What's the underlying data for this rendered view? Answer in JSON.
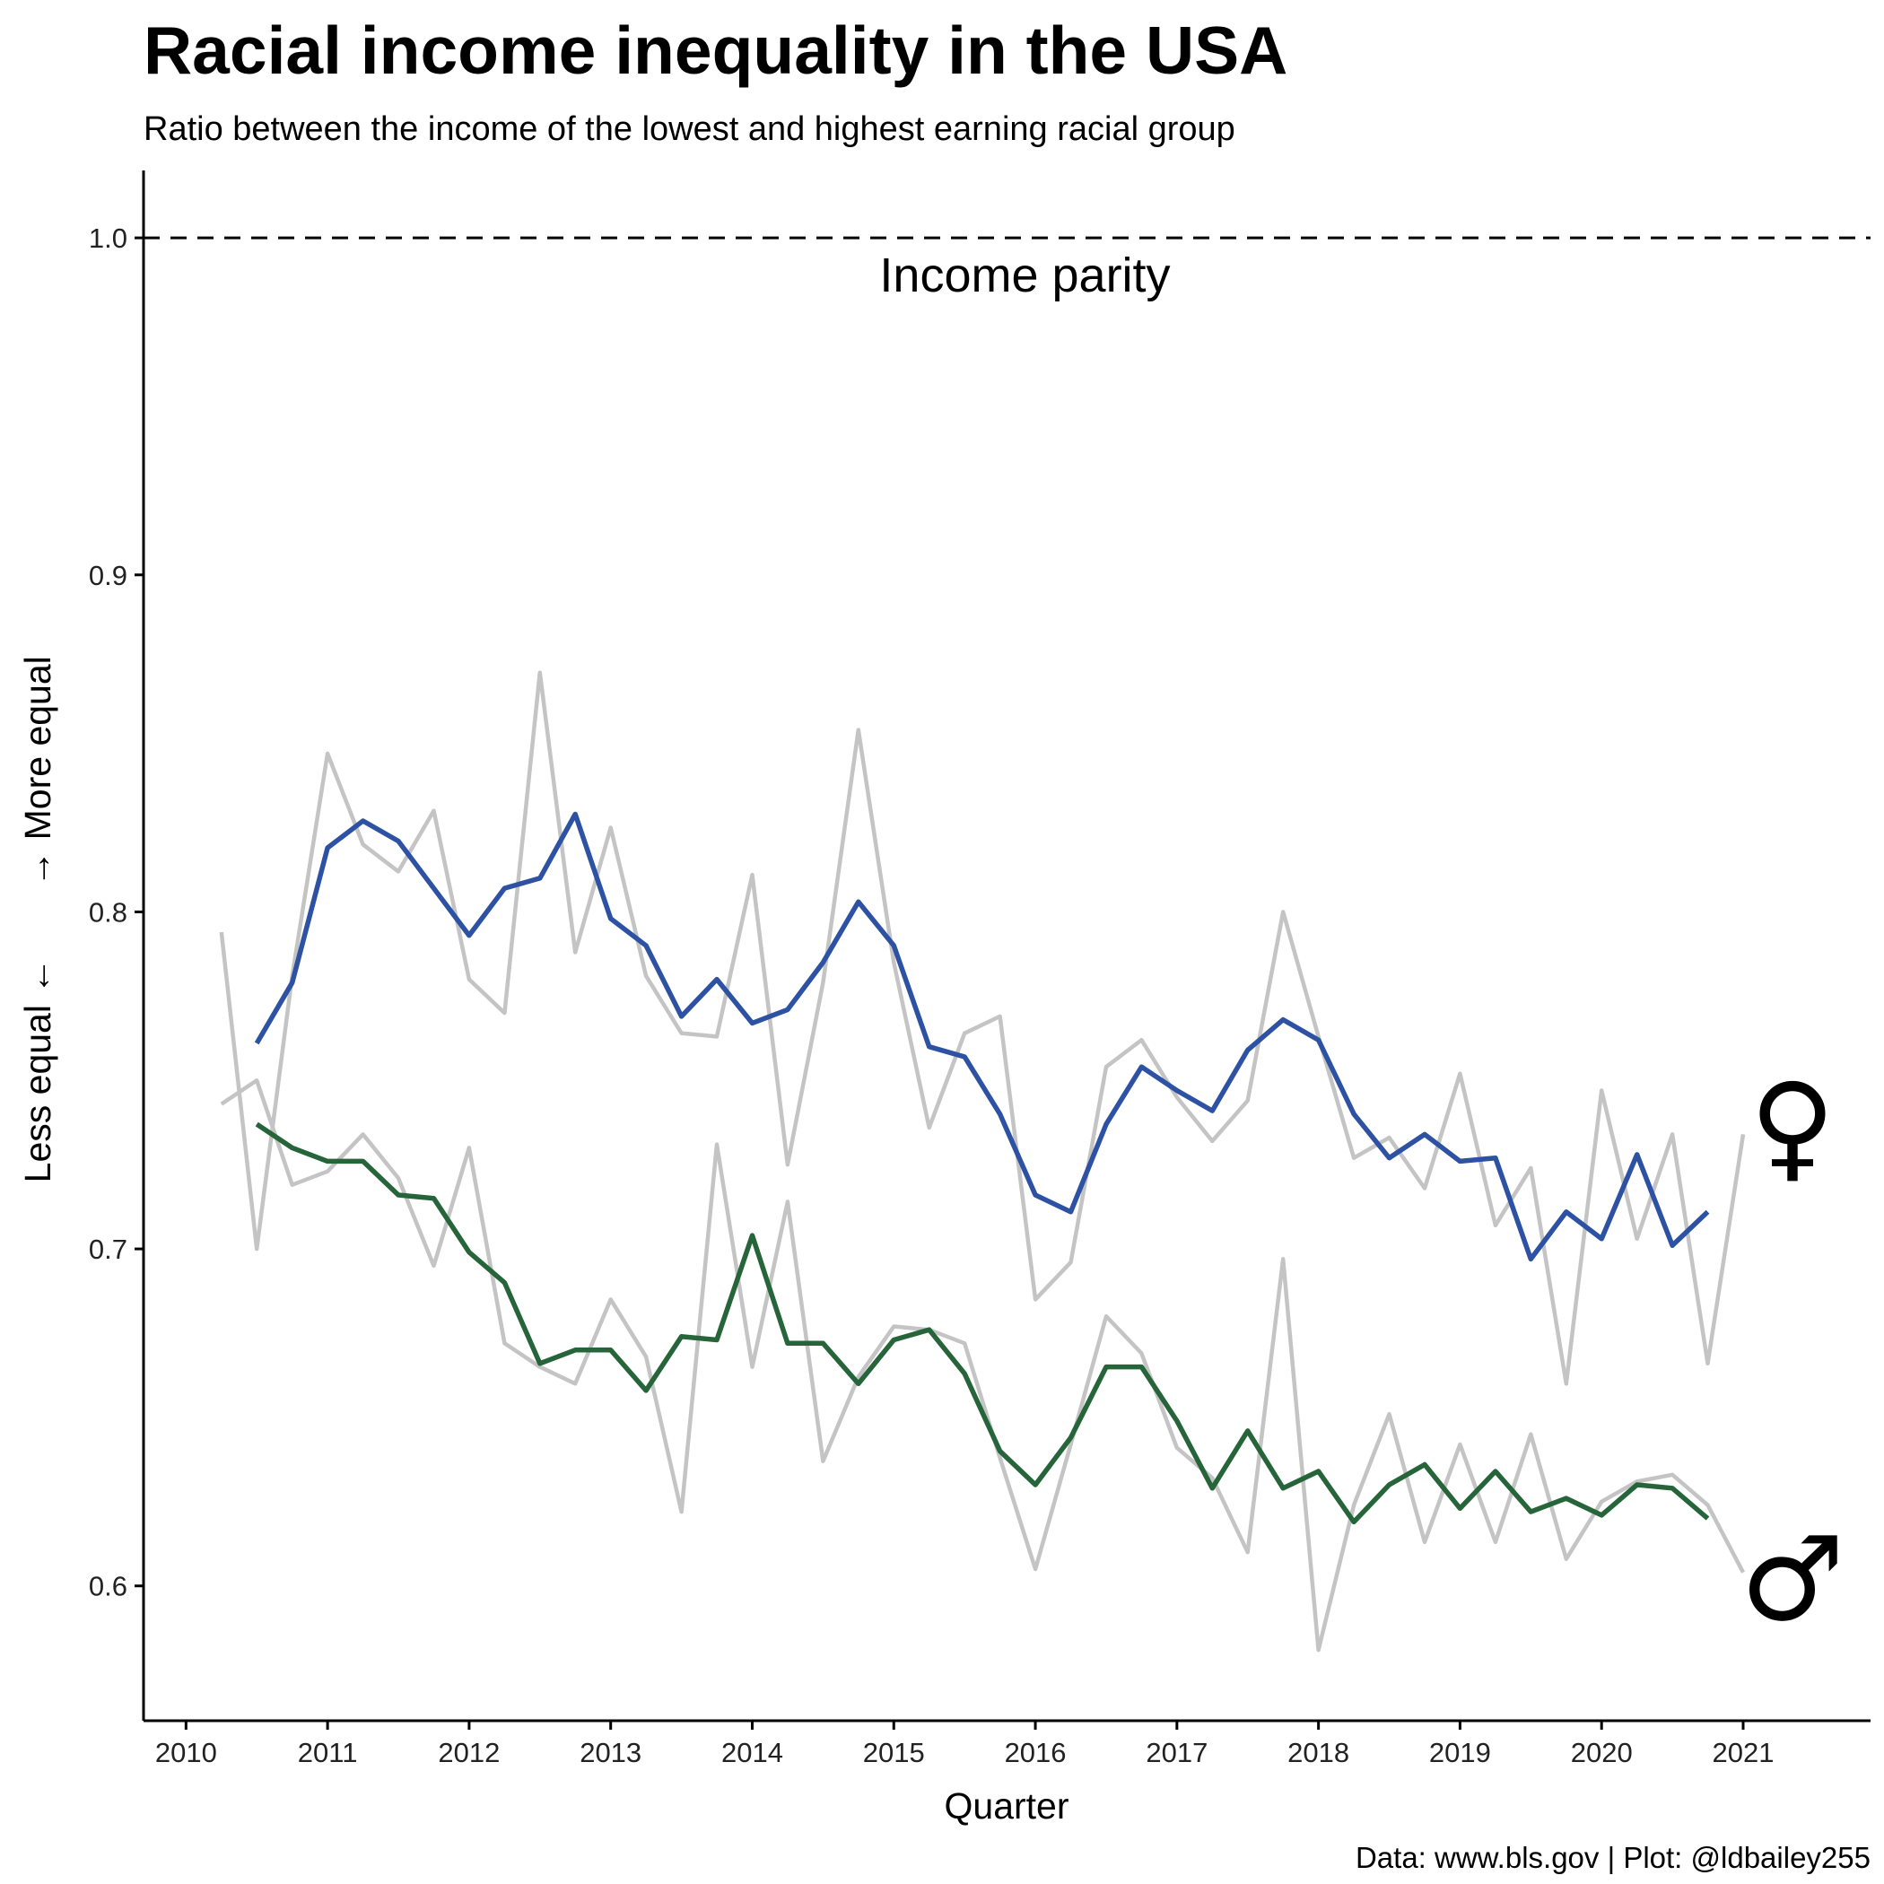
{
  "chart_data": {
    "type": "line",
    "title": "Racial income inequality in the USA",
    "subtitle": "Ratio between the income of the lowest and highest earning racial group",
    "xlabel": "Quarter",
    "ylabel_lower": "Less equal ←",
    "ylabel_upper": "→ More equal",
    "caption": "Data: www.bls.gov | Plot: @ldbailey255",
    "annotation": "Income parity",
    "reference_line": 1.0,
    "female_symbol": "♀",
    "male_symbol": "♂",
    "xlim": [
      2009.7,
      2021.9
    ],
    "ylim": [
      0.56,
      1.02
    ],
    "x_ticks": [
      2010,
      2011,
      2012,
      2013,
      2014,
      2015,
      2016,
      2017,
      2018,
      2019,
      2020,
      2021
    ],
    "y_ticks": [
      0.6,
      0.7,
      0.8,
      0.9,
      1.0
    ],
    "y_tick_labels": [
      "0.6",
      "0.7",
      "0.8",
      "0.9",
      "1.0"
    ],
    "grid": false,
    "series": [
      {
        "key": "female_raw",
        "role": "raw",
        "color": "#c4c4c4",
        "x": [
          2010.25,
          2010.5,
          2010.75,
          2011.0,
          2011.25,
          2011.5,
          2011.75,
          2012.0,
          2012.25,
          2012.5,
          2012.75,
          2013.0,
          2013.25,
          2013.5,
          2013.75,
          2014.0,
          2014.25,
          2014.5,
          2014.75,
          2015.0,
          2015.25,
          2015.5,
          2015.75,
          2016.0,
          2016.25,
          2016.5,
          2016.75,
          2017.0,
          2017.25,
          2017.5,
          2017.75,
          2018.0,
          2018.25,
          2018.5,
          2018.75,
          2019.0,
          2019.25,
          2019.5,
          2019.75,
          2020.0,
          2020.25,
          2020.5,
          2020.75,
          2021.0
        ],
        "y": [
          0.794,
          0.7,
          0.781,
          0.847,
          0.82,
          0.812,
          0.83,
          0.78,
          0.77,
          0.871,
          0.788,
          0.825,
          0.781,
          0.764,
          0.763,
          0.811,
          0.725,
          0.779,
          0.854,
          0.785,
          0.736,
          0.764,
          0.769,
          0.685,
          0.696,
          0.754,
          0.762,
          0.745,
          0.732,
          0.744,
          0.8,
          0.763,
          0.727,
          0.733,
          0.718,
          0.752,
          0.707,
          0.724,
          0.66,
          0.747,
          0.703,
          0.734,
          0.666,
          0.734
        ]
      },
      {
        "key": "male_raw",
        "role": "raw",
        "color": "#c4c4c4",
        "x": [
          2010.25,
          2010.5,
          2010.75,
          2011.0,
          2011.25,
          2011.5,
          2011.75,
          2012.0,
          2012.25,
          2012.5,
          2012.75,
          2013.0,
          2013.25,
          2013.5,
          2013.75,
          2014.0,
          2014.25,
          2014.5,
          2014.75,
          2015.0,
          2015.25,
          2015.5,
          2015.75,
          2016.0,
          2016.25,
          2016.5,
          2016.75,
          2017.0,
          2017.25,
          2017.5,
          2017.75,
          2018.0,
          2018.25,
          2018.5,
          2018.75,
          2019.0,
          2019.25,
          2019.5,
          2019.75,
          2020.0,
          2020.25,
          2020.5,
          2020.75,
          2021.0
        ],
        "y": [
          0.743,
          0.75,
          0.719,
          0.723,
          0.734,
          0.721,
          0.695,
          0.73,
          0.672,
          0.665,
          0.66,
          0.685,
          0.668,
          0.622,
          0.731,
          0.665,
          0.714,
          0.637,
          0.662,
          0.677,
          0.676,
          0.672,
          0.638,
          0.605,
          0.642,
          0.68,
          0.669,
          0.641,
          0.632,
          0.61,
          0.697,
          0.581,
          0.624,
          0.651,
          0.613,
          0.642,
          0.613,
          0.645,
          0.608,
          0.625,
          0.631,
          0.633,
          0.624,
          0.604
        ]
      },
      {
        "key": "female_smooth",
        "role": "trend",
        "color": "#2e52a3",
        "x": [
          2010.5,
          2010.75,
          2011.0,
          2011.25,
          2011.5,
          2011.75,
          2012.0,
          2012.25,
          2012.5,
          2012.75,
          2013.0,
          2013.25,
          2013.5,
          2013.75,
          2014.0,
          2014.25,
          2014.5,
          2014.75,
          2015.0,
          2015.25,
          2015.5,
          2015.75,
          2016.0,
          2016.25,
          2016.5,
          2016.75,
          2017.0,
          2017.25,
          2017.5,
          2017.75,
          2018.0,
          2018.25,
          2018.5,
          2018.75,
          2019.0,
          2019.25,
          2019.5,
          2019.75,
          2020.0,
          2020.25,
          2020.5,
          2020.75
        ],
        "y": [
          0.761,
          0.779,
          0.819,
          0.827,
          0.821,
          0.807,
          0.793,
          0.807,
          0.81,
          0.829,
          0.798,
          0.79,
          0.769,
          0.78,
          0.767,
          0.771,
          0.785,
          0.803,
          0.79,
          0.76,
          0.757,
          0.74,
          0.716,
          0.711,
          0.737,
          0.754,
          0.747,
          0.741,
          0.759,
          0.768,
          0.762,
          0.74,
          0.727,
          0.734,
          0.726,
          0.727,
          0.697,
          0.711,
          0.703,
          0.728,
          0.701,
          0.711
        ]
      },
      {
        "key": "male_smooth",
        "role": "trend",
        "color": "#26643a",
        "x": [
          2010.5,
          2010.75,
          2011.0,
          2011.25,
          2011.5,
          2011.75,
          2012.0,
          2012.25,
          2012.5,
          2012.75,
          2013.0,
          2013.25,
          2013.5,
          2013.75,
          2014.0,
          2014.25,
          2014.5,
          2014.75,
          2015.0,
          2015.25,
          2015.5,
          2015.75,
          2016.0,
          2016.25,
          2016.5,
          2016.75,
          2017.0,
          2017.25,
          2017.5,
          2017.75,
          2018.0,
          2018.25,
          2018.5,
          2018.75,
          2019.0,
          2019.25,
          2019.5,
          2019.75,
          2020.0,
          2020.25,
          2020.5,
          2020.75
        ],
        "y": [
          0.737,
          0.73,
          0.726,
          0.726,
          0.716,
          0.715,
          0.699,
          0.69,
          0.666,
          0.67,
          0.67,
          0.658,
          0.674,
          0.673,
          0.704,
          0.672,
          0.672,
          0.66,
          0.673,
          0.676,
          0.663,
          0.64,
          0.63,
          0.644,
          0.665,
          0.665,
          0.649,
          0.629,
          0.646,
          0.629,
          0.634,
          0.619,
          0.63,
          0.636,
          0.623,
          0.634,
          0.622,
          0.626,
          0.621,
          0.63,
          0.629,
          0.62
        ]
      }
    ]
  }
}
